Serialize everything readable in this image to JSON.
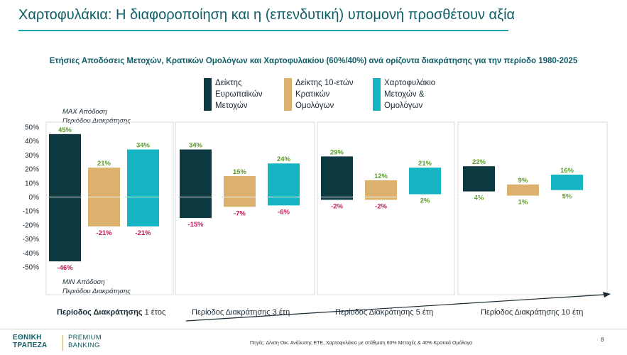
{
  "header": {
    "title": "Χαρτοφυλάκια: Η διαφοροποίηση και η (επενδυτική) υπομονή προσθέτουν αξία",
    "subtitle": "Ετήσιες Αποδόσεις Μετοχών, Κρατικών Ομολόγων και Χαρτοφυλακίου (60%/40%) ανά ορίζοντα διακράτησης για την περίοδο 1980-2025"
  },
  "legend": [
    {
      "line1": "Δείκτης",
      "line2": "Ευρωπαϊκών",
      "line3": "Μετοχών",
      "color": "#0d3a40"
    },
    {
      "line1": "Δείκτης 10-ετών",
      "line2": "Κρατικών",
      "line3": "Ομολόγων",
      "color": "#dcb06d"
    },
    {
      "line1": "Χαρτοφυλάκιο",
      "line2": "Μετοχών &",
      "line3": "Ομολόγων",
      "color": "#14b4c2"
    }
  ],
  "notes": {
    "max_line1": "MAX Απόδοση",
    "max_line2": "Περιόδου Διακράτησης",
    "min_line1": "MIN Απόδοση",
    "min_line2": "Περιόδου Διακράτησης"
  },
  "periods": {
    "p1_bold": "Περίοδος Διακράτησης",
    "p1_rest": " 1 έτος",
    "p3": "Περίοδος Διακράτησης 3 έτη",
    "p5": "Περίοδος Διακράτησης 5 έτη",
    "p10": "Περίοδος Διακράτησης 10 έτη"
  },
  "footer": {
    "logo_line1": "ΕΘΝΙΚΗ",
    "logo_line2": "ΤΡΑΠΕΖΑ",
    "premium_line1": "PREMIUM",
    "premium_line2": "BANKING",
    "source": "Πηγές: Δ/νση Οικ. Ανάλυσης ΕΤΕ, Χαρτοφυλάκιο με στάθμιση 60% Μετοχές & 40% Κρατικά Ομόλογα",
    "page": "8"
  },
  "chart_data": {
    "type": "bar",
    "subtype": "floating range (min–max)",
    "categories": [
      "1 έτος",
      "3 έτη",
      "5 έτη",
      "10 έτη"
    ],
    "series": [
      {
        "name": "Δείκτης Ευρωπαϊκών Μετοχών",
        "max": [
          45,
          34,
          29,
          22
        ],
        "min": [
          -46,
          -15,
          -2,
          4
        ],
        "color": "#0d3a40"
      },
      {
        "name": "Δείκτης 10-ετών Κρατικών Ομολόγων",
        "max": [
          21,
          15,
          12,
          9
        ],
        "min": [
          -21,
          -7,
          -2,
          1
        ],
        "color": "#dcb06d"
      },
      {
        "name": "Χαρτοφυλάκιο Μετοχών & Ομολόγων",
        "max": [
          34,
          24,
          21,
          16
        ],
        "min": [
          -21,
          -6,
          2,
          5
        ],
        "color": "#14b4c2"
      }
    ],
    "yticks": [
      "50%",
      "40%",
      "30%",
      "20%",
      "10%",
      "0%",
      "-10%",
      "-20%",
      "-30%",
      "-40%",
      "-50%"
    ],
    "ylim": [
      -50,
      50
    ],
    "max_label_color": "#5b9a2a",
    "min_label_color": "#c2185b"
  }
}
